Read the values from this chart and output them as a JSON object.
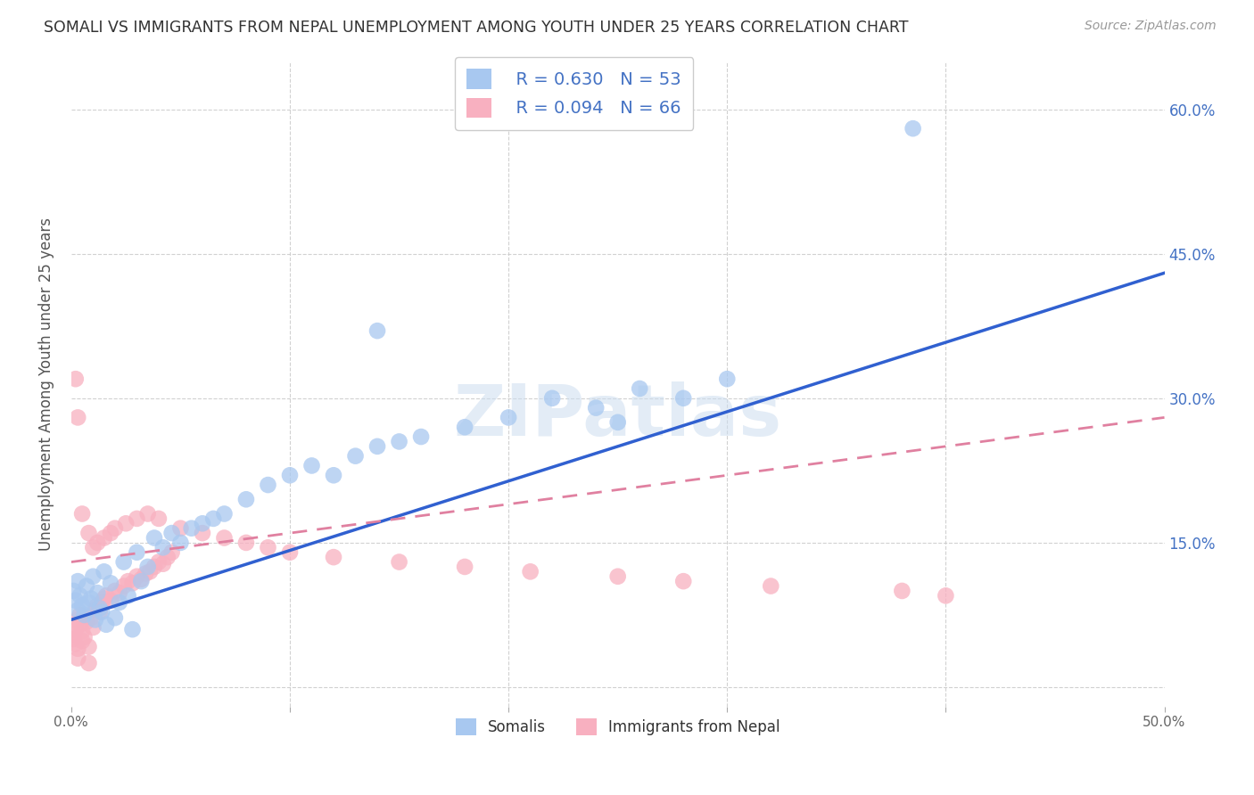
{
  "title": "SOMALI VS IMMIGRANTS FROM NEPAL UNEMPLOYMENT AMONG YOUTH UNDER 25 YEARS CORRELATION CHART",
  "source": "Source: ZipAtlas.com",
  "ylabel": "Unemployment Among Youth under 25 years",
  "xlim": [
    0.0,
    0.5
  ],
  "ylim": [
    -0.02,
    0.65
  ],
  "ytick_positions": [
    0.0,
    0.15,
    0.3,
    0.45,
    0.6
  ],
  "ytick_labels": [
    "",
    "15.0%",
    "30.0%",
    "45.0%",
    "60.0%"
  ],
  "xtick_positions": [
    0.0,
    0.1,
    0.2,
    0.3,
    0.4,
    0.5
  ],
  "xtick_labels": [
    "0.0%",
    "",
    "",
    "",
    "",
    "50.0%"
  ],
  "watermark_text": "ZIPatlas",
  "legend_somali_R": "R = 0.630",
  "legend_somali_N": "N = 53",
  "legend_nepal_R": "R = 0.094",
  "legend_nepal_N": "N = 66",
  "somali_color": "#a8c8f0",
  "nepal_color": "#f8b0c0",
  "somali_line_color": "#3060d0",
  "nepal_line_color": "#e080a0",
  "legend_text_color": "#4472c4",
  "background_color": "#ffffff",
  "grid_color": "#cccccc",
  "title_color": "#333333",
  "source_color": "#999999",
  "ylabel_color": "#555555",
  "somali_x": [
    0.001,
    0.002,
    0.003,
    0.003,
    0.004,
    0.005,
    0.006,
    0.007,
    0.008,
    0.009,
    0.01,
    0.011,
    0.012,
    0.013,
    0.014,
    0.015,
    0.016,
    0.018,
    0.02,
    0.022,
    0.024,
    0.026,
    0.028,
    0.03,
    0.032,
    0.035,
    0.038,
    0.042,
    0.046,
    0.05,
    0.055,
    0.06,
    0.065,
    0.07,
    0.08,
    0.09,
    0.1,
    0.11,
    0.12,
    0.13,
    0.14,
    0.15,
    0.16,
    0.18,
    0.2,
    0.22,
    0.24,
    0.26,
    0.28,
    0.3,
    0.385,
    0.14,
    0.25
  ],
  "somali_y": [
    0.1,
    0.09,
    0.08,
    0.11,
    0.095,
    0.085,
    0.075,
    0.105,
    0.088,
    0.092,
    0.115,
    0.07,
    0.098,
    0.082,
    0.078,
    0.12,
    0.065,
    0.108,
    0.072,
    0.088,
    0.13,
    0.095,
    0.06,
    0.14,
    0.11,
    0.125,
    0.155,
    0.145,
    0.16,
    0.15,
    0.165,
    0.17,
    0.175,
    0.18,
    0.195,
    0.21,
    0.22,
    0.23,
    0.22,
    0.24,
    0.25,
    0.255,
    0.26,
    0.27,
    0.28,
    0.3,
    0.29,
    0.31,
    0.3,
    0.32,
    0.58,
    0.37,
    0.275
  ],
  "nepal_x": [
    0.001,
    0.001,
    0.002,
    0.002,
    0.003,
    0.003,
    0.004,
    0.004,
    0.005,
    0.005,
    0.006,
    0.007,
    0.008,
    0.009,
    0.01,
    0.011,
    0.012,
    0.013,
    0.014,
    0.015,
    0.016,
    0.018,
    0.02,
    0.022,
    0.024,
    0.026,
    0.028,
    0.03,
    0.032,
    0.034,
    0.036,
    0.038,
    0.04,
    0.042,
    0.044,
    0.046,
    0.002,
    0.003,
    0.005,
    0.008,
    0.01,
    0.012,
    0.015,
    0.018,
    0.02,
    0.025,
    0.03,
    0.035,
    0.04,
    0.05,
    0.06,
    0.07,
    0.08,
    0.09,
    0.1,
    0.12,
    0.15,
    0.18,
    0.21,
    0.25,
    0.28,
    0.32,
    0.38,
    0.4,
    0.003,
    0.008
  ],
  "nepal_y": [
    0.055,
    0.05,
    0.045,
    0.06,
    0.07,
    0.04,
    0.065,
    0.075,
    0.048,
    0.058,
    0.052,
    0.068,
    0.042,
    0.072,
    0.062,
    0.08,
    0.085,
    0.078,
    0.088,
    0.092,
    0.095,
    0.09,
    0.1,
    0.098,
    0.105,
    0.11,
    0.108,
    0.115,
    0.112,
    0.118,
    0.12,
    0.125,
    0.13,
    0.128,
    0.135,
    0.14,
    0.32,
    0.28,
    0.18,
    0.16,
    0.145,
    0.15,
    0.155,
    0.16,
    0.165,
    0.17,
    0.175,
    0.18,
    0.175,
    0.165,
    0.16,
    0.155,
    0.15,
    0.145,
    0.14,
    0.135,
    0.13,
    0.125,
    0.12,
    0.115,
    0.11,
    0.105,
    0.1,
    0.095,
    0.03,
    0.025
  ]
}
